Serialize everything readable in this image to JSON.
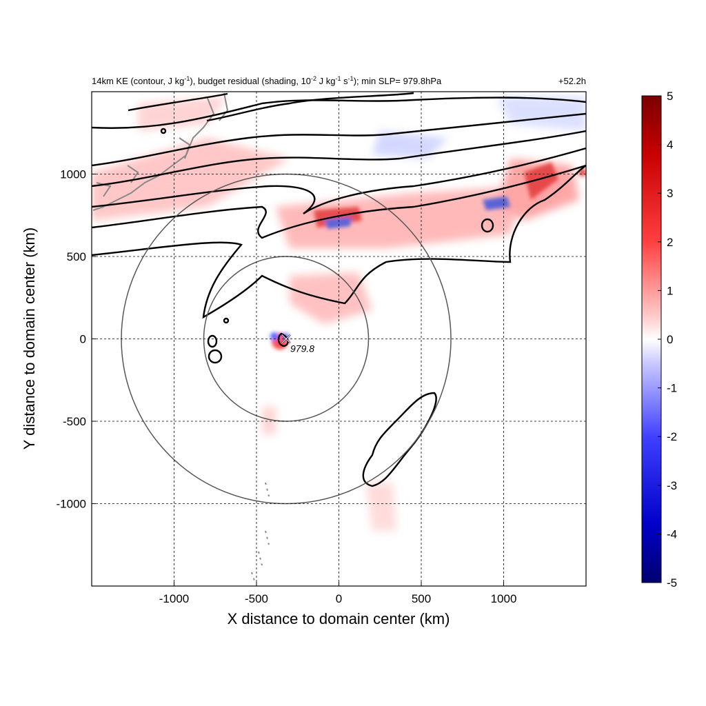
{
  "chart_data": {
    "type": "heatmap",
    "title_left_parts": {
      "p1": "14km KE (contour, J kg",
      "p1_sup": "-1",
      "p2": "), budget residual (shading, 10",
      "p2_sup": "-2",
      "p3": " J kg",
      "p3_sup": "-1",
      "p4": " s",
      "p4_sup": "-1",
      "p5": "); min SLP= 979.8hPa"
    },
    "title_right": "+52.2h",
    "xlabel": "X distance to domain center (km)",
    "ylabel": "Y distance to domain center (km)",
    "xlim": [
      -1500,
      1500
    ],
    "ylim": [
      -1500,
      1500
    ],
    "xticks": [
      -1000,
      -500,
      0,
      500,
      1000
    ],
    "yticks": [
      1000,
      500,
      0,
      -500,
      -1000
    ],
    "grid": true,
    "colorbar": {
      "min": -5,
      "max": 5,
      "ticks": [
        5,
        4,
        3,
        2,
        1,
        0,
        -1,
        -2,
        -3,
        -4,
        -5
      ],
      "colors": [
        "#000080",
        "#0000ff",
        "#ffffff",
        "#ff0000",
        "#800000"
      ]
    },
    "storm_center": {
      "x": -320,
      "y": 0,
      "label": "979.8"
    },
    "range_circles_km": [
      500,
      1000
    ],
    "colors": {
      "contour": "#000000",
      "coastline": "#888888",
      "circle": "#555555",
      "positive": "#e03030",
      "negative": "#3050e0"
    }
  }
}
